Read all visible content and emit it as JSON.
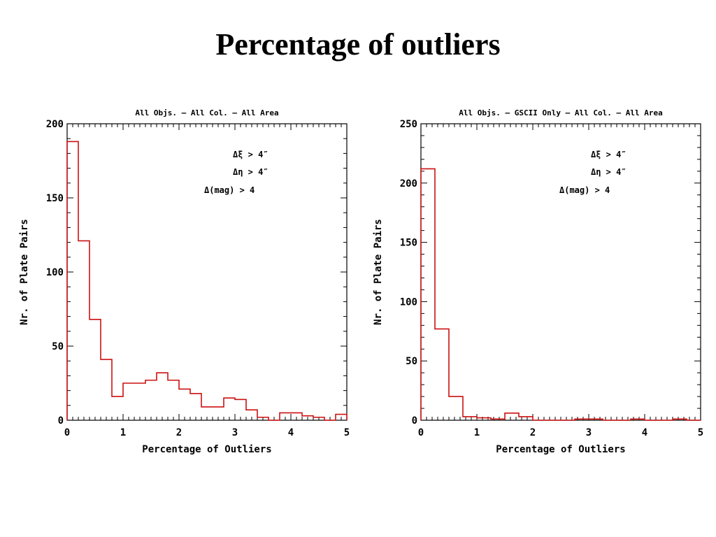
{
  "slide": {
    "title": "Percentage of outliers"
  },
  "colors": {
    "histogram": "#cc1111",
    "axes": "#000000"
  },
  "chart_data": [
    {
      "type": "bar",
      "style": "step-histogram",
      "title": "All Objs. – All Col. – All Area",
      "xlabel": "Percentage of Outliers",
      "ylabel": "Nr. of Plate Pairs",
      "xlim": [
        0,
        5
      ],
      "ylim": [
        0,
        200
      ],
      "xticks": [
        0,
        1,
        2,
        3,
        4,
        5
      ],
      "yticks": [
        0,
        50,
        100,
        150,
        200
      ],
      "bin_width": 0.2,
      "bin_starts": [
        0.0,
        0.2,
        0.4,
        0.6,
        0.8,
        1.0,
        1.2,
        1.4,
        1.6,
        1.8,
        2.0,
        2.2,
        2.4,
        2.6,
        2.8,
        3.0,
        3.2,
        3.4,
        3.6,
        3.8,
        4.0,
        4.2,
        4.4,
        4.6,
        4.8
      ],
      "values": [
        188,
        121,
        68,
        41,
        16,
        25,
        25,
        27,
        32,
        27,
        21,
        18,
        9,
        9,
        15,
        14,
        7,
        2,
        0,
        5,
        5,
        3,
        2,
        0,
        4
      ],
      "annotations": [
        "Δξ > 4″",
        "Δη > 4″",
        "Δ(mag) > 4"
      ]
    },
    {
      "type": "bar",
      "style": "step-histogram",
      "title": "All Objs. – GSCII Only – All Col. – All Area",
      "xlabel": "Percentage of Outliers",
      "ylabel": "Nr. of Plate Pairs",
      "xlim": [
        0,
        5
      ],
      "ylim": [
        0,
        250
      ],
      "xticks": [
        0,
        1,
        2,
        3,
        4,
        5
      ],
      "yticks": [
        0,
        50,
        100,
        150,
        200,
        250
      ],
      "bin_width": 0.25,
      "bin_starts": [
        0.0,
        0.25,
        0.5,
        0.75,
        1.0,
        1.25,
        1.5,
        1.75,
        2.0,
        2.25,
        2.5,
        2.75,
        3.0,
        3.25,
        3.5,
        3.75,
        4.0,
        4.25,
        4.5,
        4.75
      ],
      "values": [
        212,
        77,
        20,
        3,
        2,
        1,
        6,
        3,
        0,
        0,
        0,
        1,
        1,
        0,
        0,
        1,
        0,
        0,
        1,
        0
      ],
      "annotations": [
        "Δξ > 4″",
        "Δη > 4″",
        "Δ(mag) > 4"
      ]
    }
  ]
}
